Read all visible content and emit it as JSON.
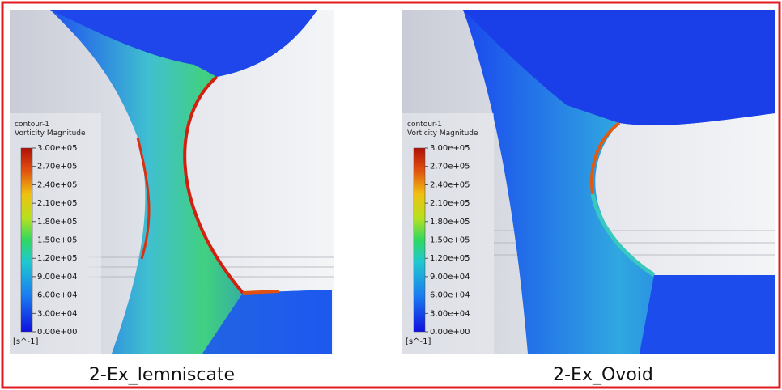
{
  "panels": [
    {
      "legend": {
        "title": "contour-1",
        "quantity": "Vorticity Magnitude",
        "ticks": [
          "3.00e+05",
          "2.70e+05",
          "2.40e+05",
          "2.10e+05",
          "1.80e+05",
          "1.50e+05",
          "1.20e+05",
          "9.00e+04",
          "6.00e+04",
          "3.00e+04",
          "0.00e+00"
        ],
        "unit": "[s^-1]"
      },
      "caption": "2-Ex_lemniscate"
    },
    {
      "legend": {
        "title": "contour-1",
        "quantity": "Vorticity Magnitude",
        "ticks": [
          "3.00e+05",
          "2.70e+05",
          "2.40e+05",
          "2.10e+05",
          "1.80e+05",
          "1.50e+05",
          "1.20e+05",
          "9.00e+04",
          "6.00e+04",
          "3.00e+04",
          "0.00e+00"
        ],
        "unit": "[s^-1]"
      },
      "caption": "2-Ex_Ovoid"
    }
  ]
}
